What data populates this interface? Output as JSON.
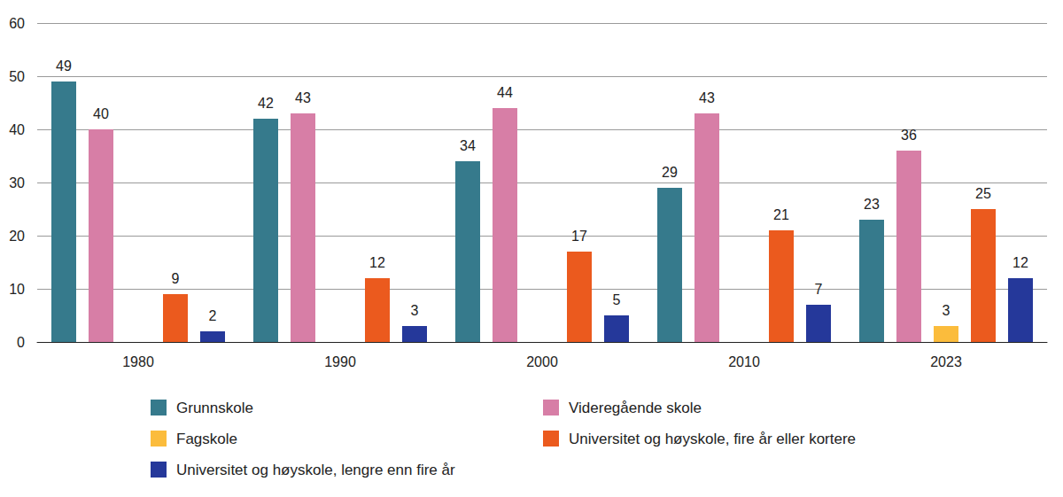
{
  "chart_data": {
    "type": "bar",
    "categories": [
      "1980",
      "1990",
      "2000",
      "2010",
      "2023"
    ],
    "series": [
      {
        "name": "Grunnskole",
        "color": "#367a8c",
        "values": [
          49,
          42,
          34,
          29,
          23
        ]
      },
      {
        "name": "Videregående skole",
        "color": "#d77ea6",
        "values": [
          40,
          43,
          44,
          43,
          36
        ]
      },
      {
        "name": "Fagskole",
        "color": "#fbbc3c",
        "values": [
          null,
          null,
          null,
          null,
          3
        ]
      },
      {
        "name": "Universitet og høyskole, fire år eller kortere",
        "color": "#eb5a1e",
        "values": [
          9,
          12,
          17,
          21,
          25
        ]
      },
      {
        "name": "Universitet og høyskole, lengre enn fire år",
        "color": "#25389a",
        "values": [
          2,
          3,
          5,
          7,
          12
        ]
      }
    ],
    "ylim": [
      0,
      60
    ],
    "yticks": [
      0,
      10,
      20,
      30,
      40,
      50,
      60
    ],
    "grid": true,
    "legend": "bottom",
    "data_labels": true
  }
}
